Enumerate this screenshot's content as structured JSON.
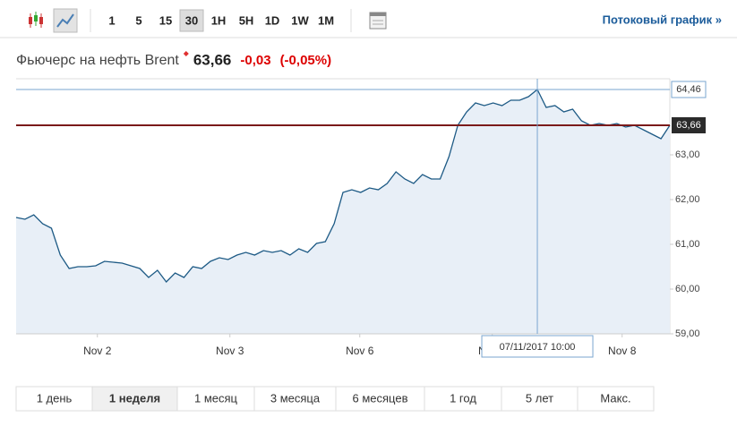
{
  "toolbar": {
    "intervals": [
      "1",
      "5",
      "15",
      "30",
      "1H",
      "5H",
      "1D",
      "1W",
      "1M"
    ],
    "selected": 3,
    "link": "Потоковый график »"
  },
  "chart_data": {
    "type": "line",
    "title": "Фьючерс на нефть Brent",
    "price": "63,66",
    "change": "-0,03",
    "change_pct": "(-0,05%)",
    "series": [
      {
        "color": "#1d5a85",
        "values": [
          61.6,
          61.56,
          61.66,
          61.46,
          61.36,
          60.76,
          60.46,
          60.5,
          60.5,
          60.52,
          60.62,
          60.6,
          60.58,
          60.52,
          60.46,
          60.26,
          60.42,
          60.16,
          60.36,
          60.26,
          60.5,
          60.46,
          60.62,
          60.7,
          60.66,
          60.76,
          60.82,
          60.76,
          60.86,
          60.82,
          60.86,
          60.76,
          60.9,
          60.82,
          61.02,
          61.06,
          61.46,
          62.16,
          62.22,
          62.16,
          62.26,
          62.22,
          62.36,
          62.62,
          62.46,
          62.36,
          62.56,
          62.46,
          62.46,
          62.96,
          63.66,
          63.96,
          64.16,
          64.1,
          64.16,
          64.1,
          64.22,
          64.22,
          64.3,
          64.46,
          64.06,
          64.1,
          63.96,
          64.02,
          63.76,
          63.66,
          63.7,
          63.66,
          63.7,
          63.62,
          63.66,
          63.56,
          63.46,
          63.36,
          63.66
        ]
      }
    ],
    "xlim": [
      0,
      74
    ],
    "xticks": [
      {
        "value": 9.2,
        "label": "Nov 2"
      },
      {
        "value": 24.2,
        "label": "Nov 3"
      },
      {
        "value": 38.9,
        "label": "Nov 6"
      },
      {
        "value": 53.9,
        "label": "Nov 7"
      },
      {
        "value": 68.6,
        "label": "Nov 8"
      }
    ],
    "ylim": [
      59,
      64.7
    ],
    "yticks": [
      {
        "value": 59,
        "label": "59,00"
      },
      {
        "value": 60,
        "label": "60,00"
      },
      {
        "value": 61,
        "label": "61,00"
      },
      {
        "value": 62,
        "label": "62,00"
      },
      {
        "value": 63,
        "label": "63,00"
      }
    ],
    "crosshair": {
      "value": 64.46,
      "label": "64,46",
      "x_label": "07/11/2017 10:00"
    },
    "last": {
      "value": 63.66,
      "label": "63,66",
      "color": "#7a1a1a"
    }
  },
  "periods": {
    "items": [
      "1 день",
      "1 неделя",
      "1 месяц",
      "3 месяца",
      "6 месяцев",
      "1 год",
      "5 лет",
      "Макс."
    ],
    "selected": 1
  }
}
